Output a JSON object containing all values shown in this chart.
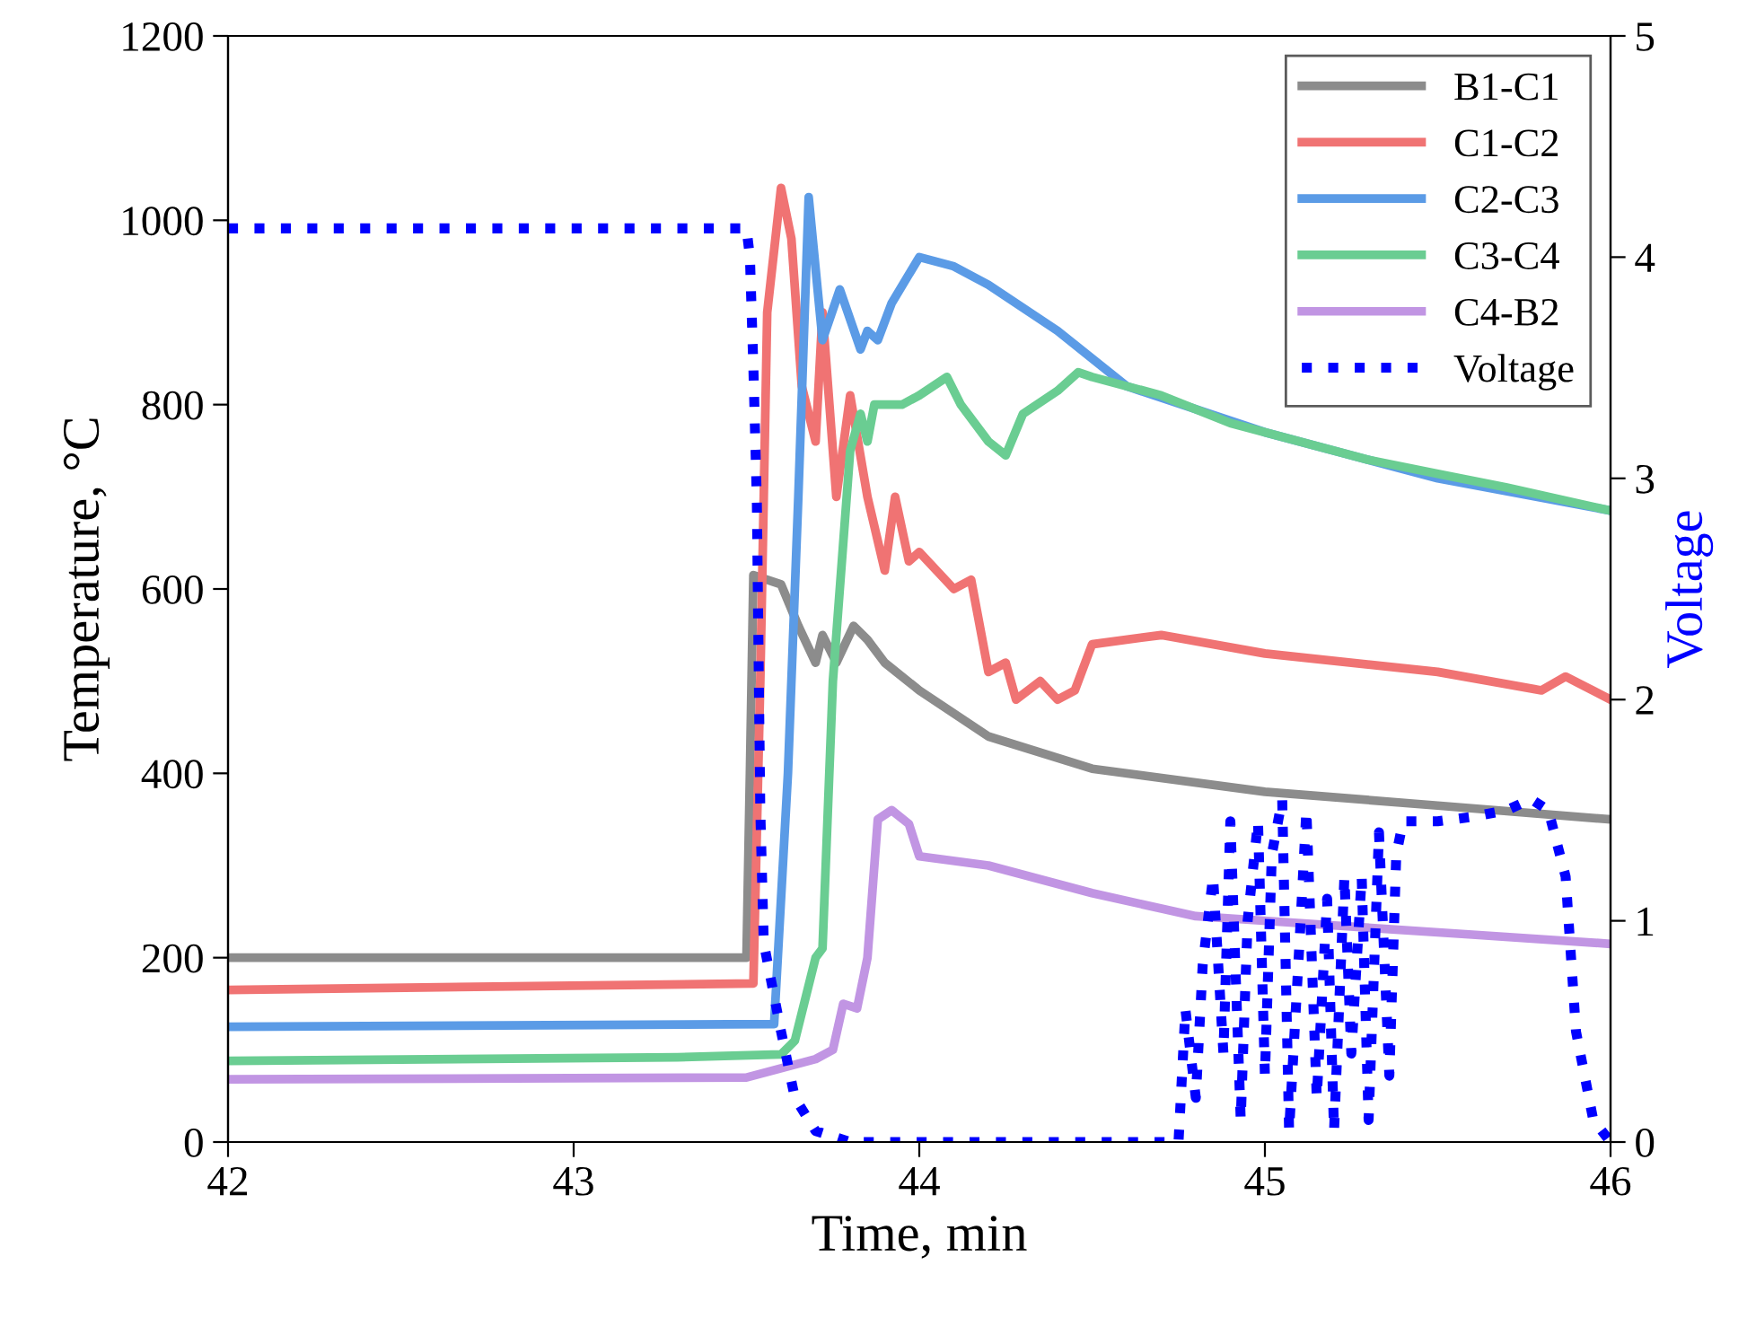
{
  "chart_data": {
    "type": "line",
    "xlabel": "Time, min",
    "ylabel": "Temperature, °C",
    "y2label": "Voltage",
    "xlim": [
      42,
      46
    ],
    "xticks": [
      42,
      43,
      44,
      45,
      46
    ],
    "ylim": [
      0,
      1200
    ],
    "yticks": [
      0,
      200,
      400,
      600,
      800,
      1000,
      1200
    ],
    "y2lim": [
      0,
      5
    ],
    "y2ticks": [
      0,
      1,
      2,
      3,
      4,
      5
    ],
    "grid": false,
    "legend": "top right",
    "line_style": "solid",
    "marker": "none",
    "series": [
      {
        "name": "B1-C1",
        "color": "#8c8c8c",
        "x": [
          42,
          43.5,
          43.51,
          43.52,
          43.6,
          43.65,
          43.7,
          43.72,
          43.76,
          43.81,
          43.85,
          43.9,
          44.0,
          44.2,
          44.5,
          45,
          45.5,
          46
        ],
        "values": [
          200,
          200,
          400,
          615,
          605,
          560,
          520,
          550,
          520,
          560,
          545,
          520,
          490,
          440,
          405,
          380,
          365,
          350
        ]
      },
      {
        "name": "C1-C2",
        "color": "#f07373",
        "x": [
          42,
          43.52,
          43.54,
          43.56,
          43.6,
          43.63,
          43.66,
          43.7,
          43.72,
          43.76,
          43.8,
          43.85,
          43.9,
          43.93,
          43.97,
          44.0,
          44.1,
          44.15,
          44.2,
          44.25,
          44.28,
          44.35,
          44.4,
          44.45,
          44.5,
          44.7,
          45,
          45.5,
          45.8,
          45.87,
          46
        ],
        "values": [
          165,
          172,
          500,
          900,
          1035,
          980,
          820,
          760,
          900,
          700,
          810,
          700,
          620,
          700,
          630,
          640,
          600,
          610,
          510,
          520,
          480,
          500,
          480,
          490,
          540,
          550,
          530,
          510,
          490,
          505,
          480
        ]
      },
      {
        "name": "C2-C3",
        "color": "#5b9be6",
        "x": [
          42,
          43.58,
          43.62,
          43.65,
          43.68,
          43.72,
          43.77,
          43.83,
          43.85,
          43.88,
          43.92,
          44.0,
          44.1,
          44.2,
          44.4,
          44.6,
          45,
          45.5,
          46
        ],
        "values": [
          125,
          128,
          400,
          700,
          1025,
          870,
          925,
          860,
          880,
          870,
          910,
          960,
          950,
          930,
          880,
          820,
          770,
          720,
          685
        ]
      },
      {
        "name": "C3-C4",
        "color": "#6acd92",
        "x": [
          42,
          43.3,
          43.6,
          43.64,
          43.7,
          43.72,
          43.75,
          43.8,
          43.83,
          43.85,
          43.87,
          43.95,
          44.0,
          44.08,
          44.12,
          44.2,
          44.25,
          44.3,
          44.4,
          44.46,
          44.5,
          44.7,
          44.9,
          45.1,
          45.3,
          45.5,
          45.7,
          46
        ],
        "values": [
          88,
          92,
          95,
          110,
          200,
          210,
          500,
          750,
          790,
          760,
          800,
          800,
          810,
          830,
          800,
          760,
          745,
          790,
          815,
          835,
          830,
          810,
          780,
          760,
          740,
          725,
          710,
          685
        ]
      },
      {
        "name": "C4-B2",
        "color": "#c195e3",
        "x": [
          42,
          43.5,
          43.6,
          43.7,
          43.75,
          43.78,
          43.82,
          43.85,
          43.88,
          43.92,
          43.97,
          44.0,
          44.2,
          44.5,
          44.8,
          45.2,
          45.6,
          46
        ],
        "values": [
          68,
          70,
          80,
          90,
          100,
          150,
          145,
          200,
          350,
          360,
          345,
          310,
          300,
          270,
          245,
          235,
          225,
          215
        ]
      },
      {
        "name": "Voltage",
        "color": "#0000ff",
        "axis": "y2",
        "line_style": "dotted",
        "x": [
          42,
          43.5,
          43.51,
          43.52,
          43.53,
          43.535,
          43.54,
          43.55,
          43.6,
          43.64,
          43.7,
          43.8,
          44.5,
          44.75,
          44.77,
          44.8,
          44.82,
          44.85,
          44.88,
          44.9,
          44.93,
          44.95,
          44.98,
          45.0,
          45.02,
          45.05,
          45.07,
          45.1,
          45.12,
          45.15,
          45.18,
          45.2,
          45.23,
          45.25,
          45.28,
          45.3,
          45.33,
          45.36,
          45.38,
          45.4,
          45.5,
          45.6,
          45.7,
          45.77,
          45.82,
          45.87,
          45.9,
          45.95,
          46
        ],
        "values": [
          4.13,
          4.13,
          4.0,
          3.5,
          2.9,
          2.2,
          1.5,
          0.9,
          0.5,
          0.2,
          0.05,
          0,
          0,
          0,
          0.6,
          0.2,
          0.8,
          1.2,
          0.4,
          1.45,
          0.1,
          1.0,
          1.45,
          0.3,
          1.3,
          1.55,
          0.05,
          0.9,
          1.5,
          0.2,
          1.1,
          0.05,
          1.2,
          0.4,
          1.2,
          0.1,
          1.4,
          0.3,
          1.3,
          1.45,
          1.45,
          1.47,
          1.5,
          1.55,
          1.5,
          1.2,
          0.5,
          0.1,
          0
        ]
      }
    ]
  }
}
